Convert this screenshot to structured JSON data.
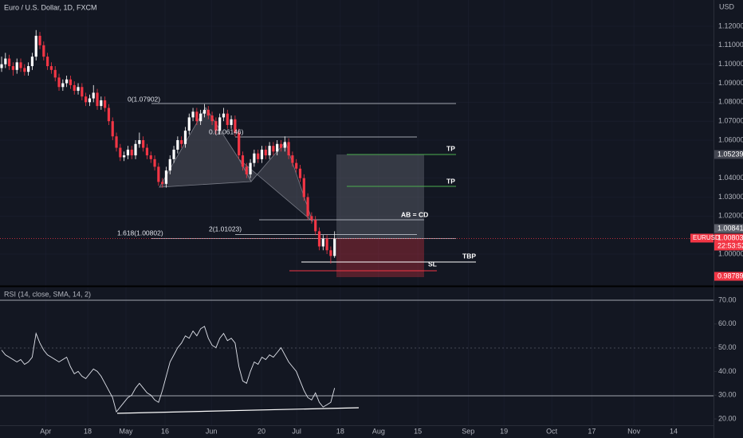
{
  "symbol": "EURUSD",
  "currency": "USD",
  "chart_data": [
    {
      "type": "candlestick",
      "title": "Euro / U.S. Dollar, 1D, FXCM",
      "up_color": "#ffffff",
      "down_color": "#f23645",
      "xlim": [
        -0.42,
        186
      ],
      "xticks": [
        {
          "value": 11.5,
          "label": "Apr"
        },
        {
          "value": 22.5,
          "label": "18"
        },
        {
          "value": 32.5,
          "label": "May"
        },
        {
          "value": 42.7,
          "label": "16"
        },
        {
          "value": 54.8,
          "label": "Jun"
        },
        {
          "value": 67.9,
          "label": "20"
        },
        {
          "value": 77.1,
          "label": "Jul"
        },
        {
          "value": 88.5,
          "label": "18"
        },
        {
          "value": 98.5,
          "label": "Aug"
        },
        {
          "value": 108.75,
          "label": "15"
        },
        {
          "value": 121.9,
          "label": "Sep"
        },
        {
          "value": 131.25,
          "label": "19"
        },
        {
          "value": 143.75,
          "label": "Oct"
        },
        {
          "value": 154.2,
          "label": "17"
        },
        {
          "value": 165.2,
          "label": "Nov"
        },
        {
          "value": 175.6,
          "label": "14"
        }
      ],
      "ylim": [
        0.98364,
        1.13385
      ],
      "yticks": [
        {
          "value": 1.12,
          "label": "1.12000"
        },
        {
          "value": 1.11,
          "label": "1.11000"
        },
        {
          "value": 1.1,
          "label": "1.10000"
        },
        {
          "value": 1.09,
          "label": "1.09000"
        },
        {
          "value": 1.08,
          "label": "1.08000"
        },
        {
          "value": 1.07,
          "label": "1.07000"
        },
        {
          "value": 1.06,
          "label": "1.06000"
        },
        {
          "value": 1.04,
          "label": "1.04000"
        },
        {
          "value": 1.03,
          "label": "1.03000"
        },
        {
          "value": 1.02,
          "label": "1.02000"
        },
        {
          "value": 1.0,
          "label": "1.00000"
        }
      ],
      "candles": [
        [
          1.098,
          1.104,
          1.096,
          1.1
        ],
        [
          1.1,
          1.106,
          1.098,
          1.103
        ],
        [
          1.103,
          1.105,
          1.097,
          1.099
        ],
        [
          1.099,
          1.101,
          1.094,
          1.097
        ],
        [
          1.097,
          1.103,
          1.095,
          1.101
        ],
        [
          1.101,
          1.103,
          1.096,
          1.098
        ],
        [
          1.098,
          1.1,
          1.094,
          1.096
        ],
        [
          1.096,
          1.101,
          1.094,
          1.099
        ],
        [
          1.099,
          1.106,
          1.097,
          1.104
        ],
        [
          1.104,
          1.118,
          1.102,
          1.115
        ],
        [
          1.115,
          1.117,
          1.108,
          1.11
        ],
        [
          1.11,
          1.112,
          1.102,
          1.104
        ],
        [
          1.104,
          1.106,
          1.097,
          1.099
        ],
        [
          1.099,
          1.101,
          1.095,
          1.097
        ],
        [
          1.097,
          1.099,
          1.091,
          1.093
        ],
        [
          1.093,
          1.095,
          1.086,
          1.088
        ],
        [
          1.088,
          1.092,
          1.086,
          1.09
        ],
        [
          1.09,
          1.094,
          1.088,
          1.092
        ],
        [
          1.092,
          1.094,
          1.087,
          1.089
        ],
        [
          1.089,
          1.091,
          1.084,
          1.086
        ],
        [
          1.086,
          1.09,
          1.084,
          1.088
        ],
        [
          1.088,
          1.09,
          1.081,
          1.083
        ],
        [
          1.083,
          1.085,
          1.078,
          1.08
        ],
        [
          1.08,
          1.084,
          1.078,
          1.082
        ],
        [
          1.082,
          1.089,
          1.08,
          1.085
        ],
        [
          1.085,
          1.087,
          1.076,
          1.078
        ],
        [
          1.078,
          1.083,
          1.076,
          1.081
        ],
        [
          1.081,
          1.083,
          1.075,
          1.077
        ],
        [
          1.077,
          1.079,
          1.068,
          1.07
        ],
        [
          1.07,
          1.072,
          1.06,
          1.062
        ],
        [
          1.062,
          1.064,
          1.054,
          1.056
        ],
        [
          1.056,
          1.058,
          1.049,
          1.051
        ],
        [
          1.051,
          1.054,
          1.049,
          1.052
        ],
        [
          1.052,
          1.057,
          1.05,
          1.055
        ],
        [
          1.055,
          1.057,
          1.05,
          1.052
        ],
        [
          1.052,
          1.06,
          1.05,
          1.058
        ],
        [
          1.058,
          1.064,
          1.056,
          1.06
        ],
        [
          1.06,
          1.062,
          1.054,
          1.056
        ],
        [
          1.056,
          1.058,
          1.05,
          1.052
        ],
        [
          1.052,
          1.054,
          1.048,
          1.05
        ],
        [
          1.05,
          1.052,
          1.044,
          1.046
        ],
        [
          1.046,
          1.048,
          1.036,
          1.038
        ],
        [
          1.038,
          1.04,
          1.035,
          1.037
        ],
        [
          1.037,
          1.046,
          1.035,
          1.044
        ],
        [
          1.044,
          1.052,
          1.042,
          1.05
        ],
        [
          1.05,
          1.057,
          1.048,
          1.055
        ],
        [
          1.055,
          1.062,
          1.053,
          1.06
        ],
        [
          1.06,
          1.062,
          1.056,
          1.058
        ],
        [
          1.058,
          1.067,
          1.056,
          1.065
        ],
        [
          1.065,
          1.074,
          1.063,
          1.072
        ],
        [
          1.072,
          1.077,
          1.07,
          1.075
        ],
        [
          1.075,
          1.077,
          1.068,
          1.07
        ],
        [
          1.07,
          1.076,
          1.068,
          1.074
        ],
        [
          1.074,
          1.079,
          1.072,
          1.076
        ],
        [
          1.076,
          1.078,
          1.071,
          1.073
        ],
        [
          1.073,
          1.075,
          1.068,
          1.07
        ],
        [
          1.07,
          1.072,
          1.063,
          1.065
        ],
        [
          1.065,
          1.074,
          1.063,
          1.072
        ],
        [
          1.072,
          1.077,
          1.07,
          1.074
        ],
        [
          1.074,
          1.076,
          1.066,
          1.068
        ],
        [
          1.068,
          1.073,
          1.066,
          1.071
        ],
        [
          1.071,
          1.073,
          1.062,
          1.064
        ],
        [
          1.064,
          1.066,
          1.05,
          1.052
        ],
        [
          1.052,
          1.054,
          1.044,
          1.046
        ],
        [
          1.046,
          1.048,
          1.04,
          1.042
        ],
        [
          1.042,
          1.05,
          1.04,
          1.048
        ],
        [
          1.048,
          1.055,
          1.046,
          1.053
        ],
        [
          1.053,
          1.055,
          1.048,
          1.05
        ],
        [
          1.05,
          1.057,
          1.048,
          1.055
        ],
        [
          1.055,
          1.057,
          1.05,
          1.052
        ],
        [
          1.052,
          1.059,
          1.05,
          1.057
        ],
        [
          1.057,
          1.059,
          1.052,
          1.054
        ],
        [
          1.054,
          1.06,
          1.052,
          1.058
        ],
        [
          1.058,
          1.06,
          1.054,
          1.056
        ],
        [
          1.056,
          1.062,
          1.054,
          1.059
        ],
        [
          1.059,
          1.061,
          1.05,
          1.052
        ],
        [
          1.052,
          1.054,
          1.046,
          1.048
        ],
        [
          1.048,
          1.05,
          1.043,
          1.045
        ],
        [
          1.045,
          1.047,
          1.038,
          1.04
        ],
        [
          1.04,
          1.042,
          1.028,
          1.03
        ],
        [
          1.03,
          1.032,
          1.018,
          1.02
        ],
        [
          1.02,
          1.022,
          1.016,
          1.018
        ],
        [
          1.018,
          1.02,
          1.01,
          1.012
        ],
        [
          1.012,
          1.014,
          1.002,
          1.004
        ],
        [
          1.004,
          1.01,
          1.002,
          1.008
        ],
        [
          1.008,
          1.01,
          1.0,
          1.002
        ],
        [
          1.002,
          1.004,
          0.995,
          0.999
        ],
        [
          0.999,
          1.012,
          0.998,
          1.00803
        ]
      ],
      "annotations": [
        "0(1.07902)",
        "0.(1.06146)",
        "1.618(1.00802)",
        "2(1.01023)",
        "TP",
        "TP",
        "AB = CD",
        "TBP",
        "SL"
      ],
      "price_labels": [
        "1.05239",
        "1.00841",
        "1.00803",
        "22:53:52",
        "0.98789"
      ]
    },
    {
      "type": "line",
      "title": "RSI (14, close, SMA, 14, 2)",
      "color": "#e0e3eb",
      "ylim": [
        17,
        75.7
      ],
      "yticks": [
        {
          "value": 70,
          "label": "70.00"
        },
        {
          "value": 60,
          "label": "60.00"
        },
        {
          "value": 50,
          "label": "50.00"
        },
        {
          "value": 40,
          "label": "40.00"
        },
        {
          "value": 30,
          "label": "30.00"
        },
        {
          "value": 20,
          "label": "20.00"
        }
      ],
      "values": [
        49,
        47,
        46,
        45,
        44,
        45,
        43,
        44,
        46,
        56,
        52,
        49,
        47,
        46,
        45,
        44,
        45,
        46,
        42,
        39,
        40,
        38,
        37,
        39,
        41,
        40,
        38,
        35,
        32,
        29,
        23,
        25,
        27,
        29,
        30,
        33,
        35,
        33,
        31,
        30,
        28,
        27,
        32,
        38,
        44,
        47,
        50,
        52,
        55,
        54,
        57,
        55,
        58,
        59,
        54,
        51,
        50,
        54,
        56,
        53,
        54,
        52,
        42,
        36,
        35,
        40,
        44,
        43,
        46,
        45,
        47,
        46,
        48,
        50,
        47,
        44,
        42,
        40,
        36,
        32,
        29,
        28,
        31,
        27,
        25,
        26,
        27,
        33
      ]
    }
  ]
}
